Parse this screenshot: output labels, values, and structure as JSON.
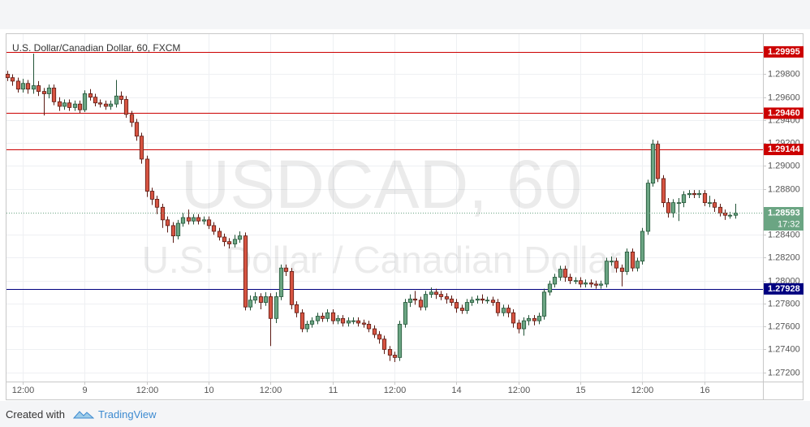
{
  "chart_data": {
    "type": "candlestick",
    "title": "U.S. Dollar/Canadian Dollar, 60, FXCM",
    "watermark": "USDCAD, 60",
    "watermark_subtitle": "U.S. Dollar / Canadian Dollar",
    "categories": [
      null,
      null,
      null,
      "12:00",
      null,
      null,
      null,
      null,
      null,
      null,
      null,
      null,
      null,
      null,
      null,
      "9",
      null,
      null,
      null,
      null,
      null,
      null,
      null,
      null,
      null,
      null,
      null,
      "12:00",
      null,
      null,
      null,
      null,
      null,
      null,
      null,
      null,
      null,
      null,
      null,
      "10",
      null,
      null,
      null,
      null,
      null,
      null,
      null,
      null,
      null,
      null,
      null,
      "12:00",
      null,
      null,
      null,
      null,
      null,
      null,
      null,
      null,
      null,
      null,
      null,
      "11",
      null,
      null,
      null,
      null,
      null,
      null,
      null,
      null,
      null,
      null,
      null,
      "12:00",
      null,
      null,
      null,
      null,
      null,
      null,
      null,
      null,
      null,
      null,
      null,
      "14",
      null,
      null,
      null,
      null,
      null,
      null,
      null,
      null,
      null,
      null,
      null,
      "12:00",
      null,
      null,
      null,
      null,
      null,
      null,
      null,
      null,
      null,
      null,
      null,
      "15",
      null,
      null,
      null,
      null,
      null,
      null,
      null,
      null,
      null,
      null,
      null,
      "12:00",
      null,
      null,
      null,
      null,
      null,
      null,
      null,
      null,
      null,
      null,
      null,
      "16",
      null,
      null,
      null,
      null,
      null,
      null
    ],
    "open": [
      1.298,
      1.2977,
      1.2974,
      1.2967,
      1.2972,
      1.2967,
      1.297,
      1.2965,
      1.2963,
      1.2968,
      1.2956,
      1.2952,
      1.2955,
      1.2951,
      1.2954,
      1.2949,
      1.2963,
      1.296,
      1.2955,
      1.2954,
      1.2952,
      1.2954,
      1.2961,
      1.2958,
      1.2945,
      1.2938,
      1.2926,
      1.2906,
      1.2878,
      1.2871,
      1.2864,
      1.2853,
      1.2848,
      1.2839,
      1.285,
      1.2855,
      1.2852,
      1.2855,
      1.2852,
      1.2853,
      1.2848,
      1.2843,
      1.2838,
      1.2834,
      1.2832,
      1.2836,
      1.2839,
      1.2777,
      1.2783,
      1.2786,
      1.2781,
      1.2786,
      1.2767,
      1.2786,
      1.2811,
      1.2808,
      1.2779,
      1.2772,
      1.2758,
      1.2762,
      1.2765,
      1.2769,
      1.2767,
      1.2772,
      1.2765,
      1.2767,
      1.2763,
      1.2765,
      1.2765,
      1.2763,
      1.2762,
      1.2758,
      1.2753,
      1.2749,
      1.274,
      1.2735,
      1.2733,
      1.2762,
      1.2781,
      1.2784,
      1.2783,
      1.2777,
      1.2788,
      1.279,
      1.2788,
      1.2786,
      1.2784,
      1.2781,
      1.2776,
      1.2774,
      1.2781,
      1.2783,
      1.2784,
      1.2783,
      1.2783,
      1.2781,
      1.2772,
      1.2776,
      1.2772,
      1.2763,
      1.2758,
      1.2765,
      1.2767,
      1.2765,
      1.2769,
      1.279,
      1.2797,
      1.2803,
      1.281,
      1.2803,
      1.28,
      1.28,
      1.2797,
      1.2798,
      1.2797,
      1.2796,
      1.2797,
      1.2817,
      1.2817,
      1.2811,
      1.2808,
      1.2825,
      1.2811,
      1.2817,
      1.2843,
      1.2885,
      1.2919,
      1.2889,
      1.2868,
      1.2859,
      1.2868,
      1.2868,
      1.2875,
      1.2876,
      1.2875,
      1.2876,
      1.2868,
      1.2868,
      1.2864,
      1.2859,
      1.2857,
      1.2857
    ],
    "high": [
      1.2983,
      1.298,
      1.2977,
      1.2976,
      1.2975,
      1.2998,
      1.2974,
      1.2968,
      1.2971,
      1.2971,
      1.296,
      1.2958,
      1.2958,
      1.2957,
      1.2957,
      1.2966,
      1.2967,
      1.2963,
      1.2958,
      1.2957,
      1.2957,
      1.2975,
      1.2965,
      1.2961,
      1.2948,
      1.2941,
      1.2929,
      1.2909,
      1.2881,
      1.2874,
      1.2867,
      1.2856,
      1.2851,
      1.2853,
      1.2859,
      1.2862,
      1.2858,
      1.2858,
      1.2856,
      1.2856,
      1.2851,
      1.2846,
      1.2841,
      1.2837,
      1.284,
      1.2843,
      1.2842,
      1.2787,
      1.279,
      1.2789,
      1.279,
      1.2789,
      1.279,
      1.2814,
      1.2814,
      1.2811,
      1.2782,
      1.2775,
      1.2765,
      1.2768,
      1.2772,
      1.2772,
      1.2775,
      1.2775,
      1.277,
      1.277,
      1.2768,
      1.2768,
      1.2768,
      1.2766,
      1.2765,
      1.2761,
      1.2756,
      1.2752,
      1.2743,
      1.2738,
      1.2765,
      1.2784,
      1.2788,
      1.2791,
      1.2786,
      1.2791,
      1.2794,
      1.2793,
      1.2791,
      1.2789,
      1.2787,
      1.2784,
      1.2779,
      1.2784,
      1.2786,
      1.2787,
      1.2788,
      1.2786,
      1.2786,
      1.2784,
      1.2779,
      1.2779,
      1.2775,
      1.2766,
      1.2768,
      1.277,
      1.277,
      1.2772,
      1.2793,
      1.28,
      1.2806,
      1.2813,
      1.2813,
      1.2806,
      1.2803,
      1.2803,
      1.2801,
      1.2801,
      1.28,
      1.28,
      1.282,
      1.2821,
      1.282,
      1.2814,
      1.2828,
      1.2828,
      1.282,
      1.2846,
      1.2888,
      1.2923,
      1.2922,
      1.2892,
      1.2872,
      1.2871,
      1.2872,
      1.2878,
      1.2879,
      1.2879,
      1.2879,
      1.2879,
      1.2874,
      1.2871,
      1.2867,
      1.2862,
      1.286,
      1.2867
    ],
    "low": [
      1.2974,
      1.297,
      1.2964,
      1.2964,
      1.2963,
      1.2963,
      1.2961,
      1.2944,
      1.2959,
      1.2953,
      1.2948,
      1.2949,
      1.2948,
      1.2948,
      1.2946,
      1.2947,
      1.2957,
      1.2952,
      1.2951,
      1.2949,
      1.2949,
      1.2951,
      1.2954,
      1.2942,
      1.2934,
      1.2922,
      1.2902,
      1.2873,
      1.2866,
      1.2858,
      1.2846,
      1.2842,
      1.2833,
      1.2836,
      1.2847,
      1.2849,
      1.2849,
      1.2849,
      1.2849,
      1.2845,
      1.284,
      1.2835,
      1.283,
      1.2828,
      1.2829,
      1.2833,
      1.2774,
      1.2774,
      1.278,
      1.2775,
      1.2778,
      1.2743,
      1.2763,
      1.2783,
      1.2804,
      1.2775,
      1.2768,
      1.2755,
      1.2755,
      1.2759,
      1.2762,
      1.2764,
      1.2764,
      1.2762,
      1.2762,
      1.276,
      1.276,
      1.2762,
      1.276,
      1.2759,
      1.2755,
      1.275,
      1.2745,
      1.2736,
      1.273,
      1.2729,
      1.273,
      1.2759,
      1.2777,
      1.2779,
      1.2774,
      1.2774,
      1.2785,
      1.2784,
      1.2783,
      1.278,
      1.2778,
      1.2772,
      1.2771,
      1.2771,
      1.2778,
      1.278,
      1.278,
      1.278,
      1.2778,
      1.2769,
      1.2769,
      1.2768,
      1.2759,
      1.2754,
      1.2752,
      1.2761,
      1.2761,
      1.2762,
      1.2766,
      1.2787,
      1.2794,
      1.28,
      1.2799,
      1.2797,
      1.2797,
      1.2794,
      1.2794,
      1.2794,
      1.2793,
      1.2793,
      1.2794,
      1.2813,
      1.2807,
      1.2795,
      1.2805,
      1.2808,
      1.2808,
      1.2814,
      1.284,
      1.2882,
      1.2886,
      1.2864,
      1.2855,
      1.2855,
      1.2852,
      1.2864,
      1.2872,
      1.2872,
      1.2872,
      1.2865,
      1.2864,
      1.286,
      1.2856,
      1.2853,
      1.2854,
      1.2854
    ],
    "close": [
      1.2977,
      1.2974,
      1.2967,
      1.2972,
      1.2967,
      1.297,
      1.2965,
      1.2963,
      1.2968,
      1.2956,
      1.2952,
      1.2955,
      1.2951,
      1.2954,
      1.2949,
      1.2963,
      1.296,
      1.2955,
      1.2954,
      1.2952,
      1.2954,
      1.2961,
      1.2958,
      1.2945,
      1.2938,
      1.2926,
      1.2906,
      1.2878,
      1.2871,
      1.2864,
      1.2853,
      1.2848,
      1.2839,
      1.285,
      1.2855,
      1.2852,
      1.2855,
      1.2852,
      1.2853,
      1.2848,
      1.2843,
      1.2838,
      1.2834,
      1.2832,
      1.2836,
      1.2839,
      1.2777,
      1.2783,
      1.2786,
      1.2781,
      1.2786,
      1.2767,
      1.2786,
      1.2811,
      1.2808,
      1.2779,
      1.2772,
      1.2758,
      1.2762,
      1.2765,
      1.2769,
      1.2767,
      1.2772,
      1.2765,
      1.2767,
      1.2763,
      1.2765,
      1.2765,
      1.2763,
      1.2762,
      1.2758,
      1.2753,
      1.2749,
      1.274,
      1.2735,
      1.2733,
      1.2762,
      1.2781,
      1.2784,
      1.2783,
      1.2777,
      1.2788,
      1.279,
      1.2788,
      1.2786,
      1.2784,
      1.2781,
      1.2776,
      1.2774,
      1.2781,
      1.2783,
      1.2784,
      1.2783,
      1.2783,
      1.2781,
      1.2772,
      1.2776,
      1.2772,
      1.2763,
      1.2758,
      1.2765,
      1.2767,
      1.2765,
      1.2769,
      1.279,
      1.2797,
      1.2803,
      1.281,
      1.2803,
      1.28,
      1.28,
      1.2797,
      1.2798,
      1.2797,
      1.2796,
      1.2797,
      1.2817,
      1.2817,
      1.2811,
      1.2808,
      1.2825,
      1.2811,
      1.2817,
      1.2843,
      1.2885,
      1.2919,
      1.2889,
      1.2868,
      1.2859,
      1.2868,
      1.2868,
      1.2875,
      1.2876,
      1.2875,
      1.2876,
      1.2868,
      1.2868,
      1.2864,
      1.2859,
      1.2857,
      1.2857,
      1.2859
    ],
    "up_color": "#6ba583",
    "down_color": "#d75442",
    "ylim": [
      1.2712,
      1.3015
    ],
    "yticks": [
      {
        "value": 1.272,
        "label": "1.27200"
      },
      {
        "value": 1.274,
        "label": "1.27400"
      },
      {
        "value": 1.276,
        "label": "1.27600"
      },
      {
        "value": 1.278,
        "label": "1.27800"
      },
      {
        "value": 1.28,
        "label": "1.28000"
      },
      {
        "value": 1.282,
        "label": "1.28200"
      },
      {
        "value": 1.284,
        "label": "1.28400"
      },
      {
        "value": 1.288,
        "label": "1.28800"
      },
      {
        "value": 1.29,
        "label": "1.29000"
      },
      {
        "value": 1.292,
        "label": "1.29200"
      },
      {
        "value": 1.294,
        "label": "1.29400"
      },
      {
        "value": 1.296,
        "label": "1.29600"
      },
      {
        "value": 1.298,
        "label": "1.29800"
      }
    ],
    "grid": true,
    "levels": [
      {
        "price": 1.29995,
        "color": "#cc0000"
      },
      {
        "price": {
          "value": 1.2946,
          "label": "1.29460"
        },
        "color": "#cc0000"
      },
      {
        "price": 1.29144,
        "color": "#cc0000"
      },
      {
        "price": 1.27928,
        "color": "#000080"
      }
    ],
    "last_price": {
      "price": 1.28593,
      "time": "17:32",
      "color": "#6ba583"
    }
  },
  "footer": {
    "prefix": "Created with",
    "brand": "TradingView"
  }
}
